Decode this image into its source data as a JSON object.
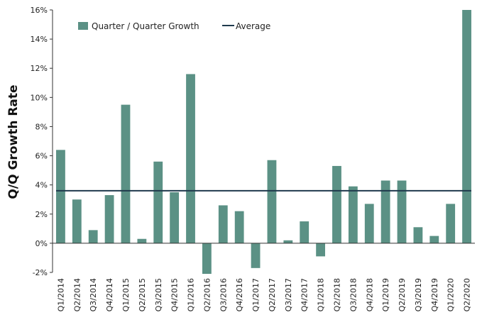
{
  "chart_data": {
    "type": "bar",
    "title": "",
    "xlabel": "",
    "ylabel": "Q/Q Growth Rate",
    "ylim": [
      -2,
      16
    ],
    "yticks": [
      -2,
      0,
      2,
      4,
      6,
      8,
      10,
      12,
      14,
      16
    ],
    "ytick_suffix": "%",
    "grid": false,
    "legend_position": "top-left",
    "colors": {
      "bar": "#5b9185",
      "average": "#1f3a4d",
      "axis": "#333333"
    },
    "categories": [
      "Q1/2014",
      "Q2/2014",
      "Q3/2014",
      "Q4/2014",
      "Q1/2015",
      "Q2/2015",
      "Q3/2015",
      "Q4/2015",
      "Q1/2016",
      "Q2/2016",
      "Q3/2016",
      "Q4/2016",
      "Q1/2017",
      "Q2/2017",
      "Q3/2017",
      "Q4/2017",
      "Q1/2018",
      "Q2/2018",
      "Q3/2018",
      "Q4/2018",
      "Q1/2019",
      "Q2/2019",
      "Q3/2019",
      "Q4/2019",
      "Q1/2020",
      "Q2/2020"
    ],
    "series": [
      {
        "name": "Quarter / Quarter Growth",
        "kind": "bar",
        "values": [
          6.4,
          3.0,
          0.9,
          3.3,
          9.5,
          0.3,
          5.6,
          3.5,
          11.6,
          -2.1,
          2.6,
          2.2,
          -1.7,
          5.7,
          0.2,
          1.5,
          -0.9,
          5.3,
          3.9,
          2.7,
          4.3,
          4.3,
          1.1,
          0.5,
          2.7,
          16.0
        ]
      },
      {
        "name": "Average",
        "kind": "line",
        "value": 3.6
      }
    ]
  }
}
